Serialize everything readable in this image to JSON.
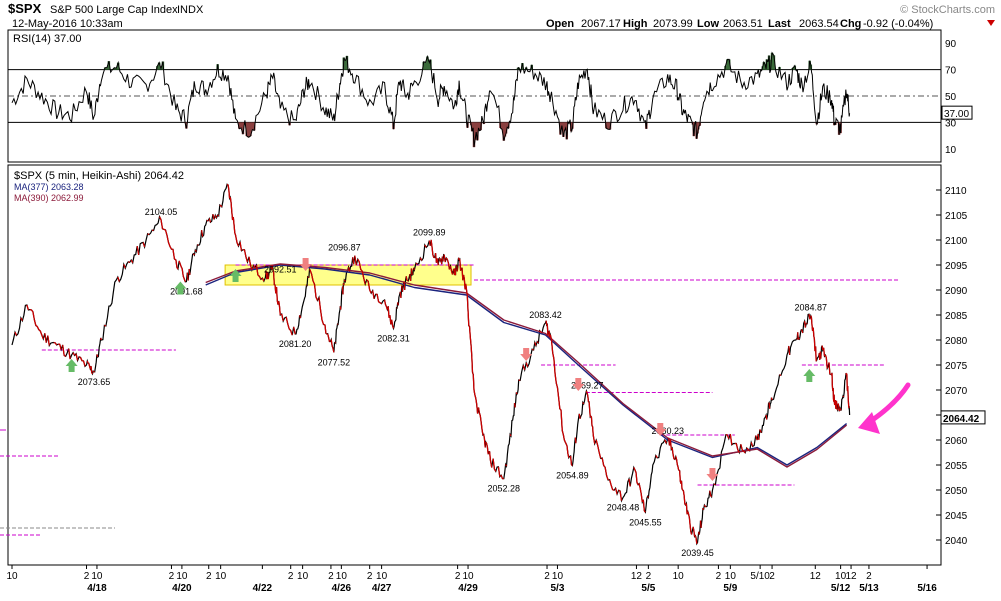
{
  "header": {
    "symbol": "$SPX",
    "name": "S&P 500 Large Cap Index",
    "exchange": "INDX",
    "date": "12-May-2016 10:33am",
    "brand": "© StockCharts.com",
    "open_label": "Open",
    "open": "2067.17",
    "high_label": "High",
    "high": "2073.99",
    "low_label": "Low",
    "low": "2063.51",
    "last_label": "Last",
    "last": "2063.54",
    "chg_label": "Chg",
    "chg": "-0.92 (-0.04%)"
  },
  "rsi": {
    "label": "RSI(14) 37.00",
    "current": 37.0,
    "current_label": "37.00",
    "overbought": 70,
    "oversold": 30,
    "ticks": [
      "90",
      "70",
      "50",
      "30",
      "10"
    ]
  },
  "legend": {
    "main": "$SPX (5 min, Heikin-Ashi) 2064.42",
    "ma1": "MA(377) 2063.28",
    "ma2": "MA(390) 2062.99"
  },
  "colors": {
    "price": "#000000",
    "down": "#cc0000",
    "ma377": "#1a237e",
    "ma390": "#8b1a3a",
    "rsi_line": "#000000",
    "rsi_over": "#3a6b3a",
    "rsi_under": "#8b4040",
    "zone": "#ffff66",
    "dashed": "#cc00cc",
    "callout": "#ff33cc",
    "buy_arrow": "#66bb66",
    "sell_arrow": "#f08080"
  },
  "chart_data": {
    "type": "line",
    "style": "Heikin-Ashi 5-min price with moving averages and RSI(14)",
    "ylim": [
      2035,
      2115
    ],
    "yticks": [
      "2110",
      "2105",
      "2100",
      "2095",
      "2090",
      "2085",
      "2080",
      "2075",
      "2070",
      "2065",
      "2060",
      "2055",
      "2050",
      "2045",
      "2040"
    ],
    "last_price_label": "2064.42",
    "xticks": [
      {
        "t": 0,
        "top": "10",
        "bottom": ""
      },
      {
        "t": 5.0,
        "top": "2",
        "bottom": ""
      },
      {
        "t": 5.7,
        "top": "10",
        "bottom": "4/18"
      },
      {
        "t": 10.7,
        "top": "2",
        "bottom": ""
      },
      {
        "t": 11.4,
        "top": "10",
        "bottom": "4/20"
      },
      {
        "t": 13.2,
        "top": "2",
        "bottom": ""
      },
      {
        "t": 14.0,
        "top": "10",
        "bottom": ""
      },
      {
        "t": 16.8,
        "top": "",
        "bottom": "4/22"
      },
      {
        "t": 18.7,
        "top": "2",
        "bottom": ""
      },
      {
        "t": 19.5,
        "top": "10",
        "bottom": ""
      },
      {
        "t": 21.4,
        "top": "2",
        "bottom": ""
      },
      {
        "t": 22.1,
        "top": "10",
        "bottom": "4/26"
      },
      {
        "t": 24.0,
        "top": "2",
        "bottom": ""
      },
      {
        "t": 24.8,
        "top": "10",
        "bottom": "4/27"
      },
      {
        "t": 29.9,
        "top": "2",
        "bottom": ""
      },
      {
        "t": 30.6,
        "top": "10",
        "bottom": "4/29"
      },
      {
        "t": 35.9,
        "top": "2",
        "bottom": ""
      },
      {
        "t": 36.6,
        "top": "10",
        "bottom": "5/3"
      },
      {
        "t": 41.9,
        "top": "12",
        "bottom": ""
      },
      {
        "t": 42.7,
        "top": "2",
        "bottom": "5/5"
      },
      {
        "t": 44.7,
        "top": "10",
        "bottom": ""
      },
      {
        "t": 47.4,
        "top": "2",
        "bottom": ""
      },
      {
        "t": 48.2,
        "top": "10",
        "bottom": "5/9"
      },
      {
        "t": 50.2,
        "top": "5/10",
        "bottom": ""
      },
      {
        "t": 51.0,
        "top": "2",
        "bottom": ""
      },
      {
        "t": 53.9,
        "top": "12",
        "bottom": ""
      },
      {
        "t": 55.6,
        "top": "10",
        "bottom": "5/12"
      },
      {
        "t": 56.3,
        "top": "12",
        "bottom": ""
      },
      {
        "t": 57.5,
        "top": "2",
        "bottom": "5/13"
      },
      {
        "t": 61.4,
        "top": "",
        "bottom": "5/16"
      }
    ],
    "series": [
      {
        "name": "$SPX (5 min, Heikin-Ashi)",
        "x": [
          0,
          1,
          2,
          3,
          4,
          5,
          5.5,
          6,
          7,
          8,
          9,
          10,
          11,
          11.7,
          12.3,
          13,
          13.8,
          14.5,
          15,
          16,
          17,
          17.5,
          18,
          19,
          19.6,
          20,
          21,
          21.6,
          22,
          22.3,
          23,
          24,
          25,
          25.6,
          26,
          26.5,
          27,
          28,
          28.6,
          29,
          29.7,
          30,
          30.5,
          31,
          31.6,
          32.1,
          33,
          33.6,
          34,
          35,
          35.8,
          36.2,
          37,
          37.6,
          38,
          38.6,
          39,
          40,
          41,
          41.8,
          42.5,
          43,
          44,
          44.6,
          45,
          45.5,
          46,
          46.4,
          47,
          48,
          49,
          50,
          50.6,
          51,
          52,
          52.6,
          53,
          53.6,
          54,
          54.4,
          55,
          55.2,
          55.6,
          56,
          56.2
        ],
        "values": [
          2079,
          2087,
          2081,
          2079,
          2077,
          2075,
          2073.65,
          2080,
          2092,
          2096,
          2100,
          2104.05,
          2096,
          2091.68,
          2098,
          2103,
          2105,
          2111,
          2101,
          2095,
          2092.5,
          2094,
          2085,
          2081.2,
          2088,
          2094,
          2083,
          2077.52,
          2086,
          2092,
          2096.87,
          2090,
          2088,
          2082.31,
          2089,
          2092,
          2094,
          2099.89,
          2095,
          2097,
          2093,
          2096,
          2090,
          2070,
          2061,
          2056,
          2052.28,
          2064,
          2072,
          2078,
          2083.42,
          2080,
          2061,
          2054.89,
          2064,
          2069.27,
          2061,
          2052,
          2048.48,
          2054,
          2045.55,
          2055,
          2060.23,
          2056,
          2050,
          2043,
          2039.45,
          2046,
          2050,
          2061,
          2058,
          2060,
          2065,
          2068,
          2077,
          2080,
          2082,
          2084.87,
          2076,
          2078,
          2073,
          2067,
          2066,
          2073,
          2065
        ]
      },
      {
        "name": "MA(377)",
        "x": [
          13,
          15,
          18,
          21,
          24,
          27,
          30.5,
          33,
          35.8,
          38,
          41,
          44,
          47,
          50,
          52,
          54,
          56
        ],
        "values": [
          2091,
          2093.5,
          2095,
          2094.2,
          2093,
          2090.5,
          2089,
          2083.5,
          2081,
          2075,
          2067,
          2060,
          2056.5,
          2058.5,
          2055,
          2058.5,
          2063.28
        ]
      },
      {
        "name": "MA(390)",
        "x": [
          13,
          15,
          18,
          21,
          24,
          27,
          30.5,
          33,
          35.8,
          38,
          41,
          44,
          47,
          50,
          52,
          54,
          56
        ],
        "values": [
          2091.5,
          2093.8,
          2095.2,
          2094.5,
          2093.4,
          2091,
          2089.4,
          2084,
          2081.3,
          2075.5,
          2067.3,
          2060.4,
          2056.8,
          2058.2,
          2054.6,
          2058.1,
          2062.99
        ]
      }
    ],
    "rsi_series": {
      "name": "RSI(14)",
      "x": [
        0,
        1,
        2,
        3,
        4,
        5,
        5.5,
        6,
        7,
        8,
        9,
        10,
        11,
        11.7,
        12.3,
        13,
        13.8,
        14.5,
        15,
        16,
        17,
        17.5,
        18,
        19,
        19.6,
        20,
        21,
        21.6,
        22,
        22.3,
        23,
        24,
        25,
        25.6,
        26,
        26.5,
        27,
        28,
        28.6,
        29,
        29.7,
        30,
        30.5,
        31,
        31.6,
        32.1,
        33,
        33.6,
        34,
        35,
        35.8,
        36.2,
        37,
        37.6,
        38,
        38.6,
        39,
        40,
        41,
        41.8,
        42.5,
        43,
        44,
        44.6,
        45,
        45.5,
        46,
        46.4,
        47,
        48,
        49,
        50,
        50.6,
        51,
        52,
        52.6,
        53,
        53.6,
        54,
        54.4,
        55,
        55.2,
        55.6,
        56,
        56.2
      ],
      "values": [
        45,
        62,
        50,
        38,
        35,
        55,
        33,
        68,
        72,
        60,
        58,
        74,
        40,
        32,
        60,
        55,
        70,
        66,
        30,
        24,
        50,
        64,
        40,
        30,
        55,
        62,
        40,
        32,
        60,
        78,
        65,
        44,
        56,
        28,
        62,
        50,
        60,
        76,
        48,
        58,
        42,
        60,
        35,
        18,
        30,
        60,
        22,
        40,
        72,
        68,
        60,
        50,
        20,
        28,
        60,
        72,
        40,
        30,
        42,
        50,
        25,
        48,
        64,
        56,
        38,
        30,
        22,
        50,
        60,
        73,
        60,
        64,
        72,
        76,
        60,
        70,
        58,
        73,
        30,
        55,
        48,
        30,
        25,
        55,
        37
      ]
    },
    "annotations": [
      {
        "label": "2104.05",
        "t": 10,
        "v": 2104.05,
        "pos": "above"
      },
      {
        "label": "2091.68",
        "t": 11.7,
        "v": 2091.68,
        "pos": "below"
      },
      {
        "label": "2092.51",
        "t": 18,
        "v": 2092.51,
        "pos": "above"
      },
      {
        "label": "2096.87",
        "t": 22.3,
        "v": 2096.87,
        "pos": "above"
      },
      {
        "label": "2099.89",
        "t": 28,
        "v": 2099.89,
        "pos": "above"
      },
      {
        "label": "2073.65",
        "t": 5.5,
        "v": 2073.65,
        "pos": "below"
      },
      {
        "label": "2081.20",
        "t": 19,
        "v": 2081.2,
        "pos": "below"
      },
      {
        "label": "2077.52",
        "t": 21.6,
        "v": 2077.52,
        "pos": "below"
      },
      {
        "label": "2082.31",
        "t": 25.6,
        "v": 2082.31,
        "pos": "below"
      },
      {
        "label": "2083.42",
        "t": 35.8,
        "v": 2083.42,
        "pos": "above"
      },
      {
        "label": "2069.27",
        "t": 38.6,
        "v": 2069.27,
        "pos": "above"
      },
      {
        "label": "2060.23",
        "t": 44,
        "v": 2060.23,
        "pos": "above"
      },
      {
        "label": "2084.87",
        "t": 53.6,
        "v": 2084.87,
        "pos": "above"
      },
      {
        "label": "2052.28",
        "t": 33,
        "v": 2052.28,
        "pos": "below"
      },
      {
        "label": "2054.89",
        "t": 37.6,
        "v": 2054.89,
        "pos": "below"
      },
      {
        "label": "2048.48",
        "t": 41,
        "v": 2048.48,
        "pos": "below"
      },
      {
        "label": "2045.55",
        "t": 42.5,
        "v": 2045.55,
        "pos": "below"
      },
      {
        "label": "2039.45",
        "t": 46,
        "v": 2039.45,
        "pos": "below"
      }
    ],
    "support_lines": [
      {
        "t0": 2,
        "t1": 11,
        "v": 2078
      },
      {
        "t0": 15,
        "t1": 31,
        "v": 2095
      },
      {
        "t0": 31,
        "t1": 59.5,
        "v": 2092
      },
      {
        "t0": 35.5,
        "t1": 40.5,
        "v": 2075
      },
      {
        "t0": 38.5,
        "t1": 47,
        "v": 2069.5
      },
      {
        "t0": 43.5,
        "t1": 48.5,
        "v": 2061
      },
      {
        "t0": 46,
        "t1": 52.5,
        "v": 2051
      },
      {
        "t0": 53,
        "t1": 58.5,
        "v": 2075
      }
    ],
    "resistance_zone": {
      "t0": 14.3,
      "t1": 30.8,
      "v0": 2091,
      "v1": 2095
    },
    "buy_arrows": [
      {
        "t": 4,
        "v": 2075
      },
      {
        "t": 11.3,
        "v": 2090.5
      },
      {
        "t": 15,
        "v": 2093
      },
      {
        "t": 53.5,
        "v": 2073
      }
    ],
    "sell_arrows": [
      {
        "t": 19.7,
        "v": 2095
      },
      {
        "t": 34.5,
        "v": 2077
      },
      {
        "t": 38,
        "v": 2071
      },
      {
        "t": 43.5,
        "v": 2062
      },
      {
        "t": 47,
        "v": 2053
      }
    ]
  }
}
